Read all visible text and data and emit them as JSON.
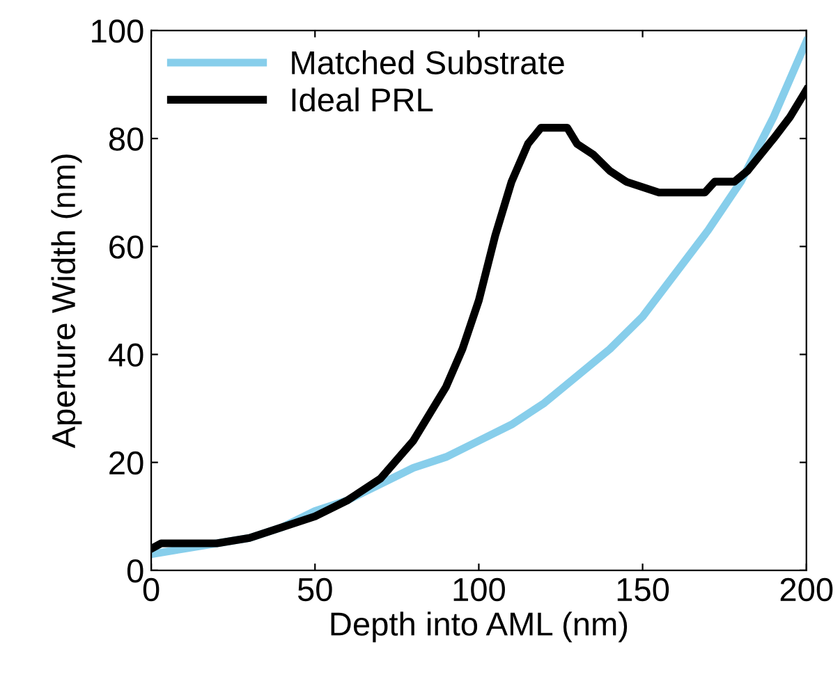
{
  "chart_data": {
    "type": "line",
    "xlabel": "Depth into AML (nm)",
    "ylabel": "Aperture Width (nm)",
    "xlim": [
      0,
      200
    ],
    "ylim": [
      0,
      100
    ],
    "xticks": [
      0,
      50,
      100,
      150,
      200
    ],
    "yticks": [
      0,
      20,
      40,
      60,
      80,
      100
    ],
    "grid": false,
    "legend": "top left",
    "series": [
      {
        "name": "Matched Substrate",
        "color": "#87ceeb",
        "x": [
          0,
          10,
          20,
          30,
          40,
          50,
          60,
          70,
          80,
          90,
          100,
          110,
          120,
          130,
          140,
          150,
          160,
          170,
          180,
          190,
          200
        ],
        "values": [
          3,
          4,
          5,
          6,
          8,
          11,
          13,
          16,
          19,
          21,
          24,
          27,
          31,
          36,
          41,
          47,
          55,
          63,
          72,
          84,
          98
        ]
      },
      {
        "name": "Ideal PRL",
        "color": "#000000",
        "x": [
          0,
          3,
          20,
          30,
          40,
          50,
          60,
          70,
          80,
          90,
          95,
          100,
          105,
          110,
          115,
          119,
          127,
          130,
          135,
          140,
          145,
          150,
          155,
          169,
          172,
          178,
          182,
          186,
          190,
          195,
          200
        ],
        "values": [
          4,
          5,
          5,
          6,
          8,
          10,
          13,
          17,
          24,
          34,
          41,
          50,
          62,
          72,
          79,
          82,
          82,
          79,
          77,
          74,
          72,
          71,
          70,
          70,
          72,
          72,
          74,
          77,
          80,
          84,
          89
        ]
      }
    ]
  }
}
